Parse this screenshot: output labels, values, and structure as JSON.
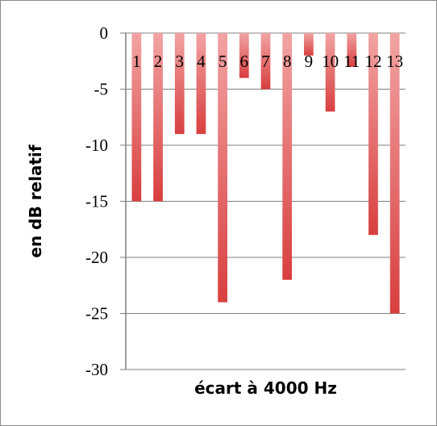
{
  "chart_data": {
    "type": "bar",
    "title": "",
    "xlabel": "écart à 4000 Hz",
    "ylabel": "en dB relatif",
    "categories": [
      "1",
      "2",
      "3",
      "4",
      "5",
      "6",
      "7",
      "8",
      "9",
      "10",
      "11",
      "12",
      "13"
    ],
    "values": [
      -15,
      -15,
      -9,
      -9,
      -24,
      -4,
      -5,
      -22,
      -2,
      -7,
      -3,
      -18,
      -25
    ],
    "ylim": [
      -30,
      0
    ],
    "yticks": [
      0,
      -5,
      -10,
      -15,
      -20,
      -25,
      -30
    ],
    "ytick_labels": [
      "0",
      "-5",
      "-10",
      "-15",
      "-20",
      "-25",
      "-30"
    ],
    "grid": true,
    "legend": "none",
    "colors": {
      "bar_top": "#f2a3a3",
      "bar_bottom": "#d83f3f",
      "grid": "#7f7f7f",
      "axis": "#7f7f7f"
    }
  }
}
